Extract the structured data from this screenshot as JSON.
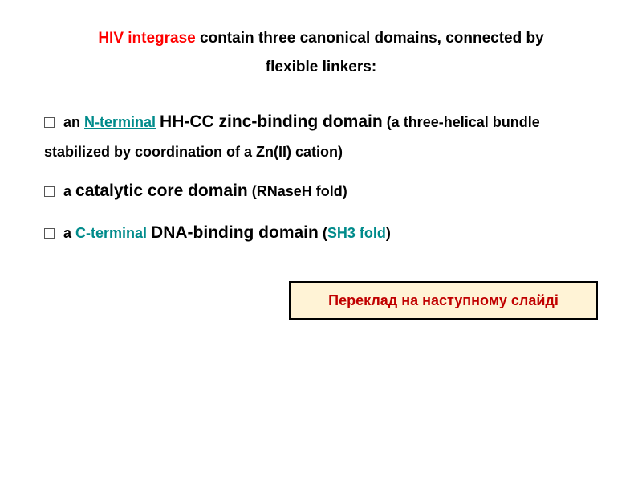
{
  "title": {
    "highlight": "HIV integrase",
    "rest_line1": " contain three canonical domains, connected by",
    "line2": "flexible linkers:"
  },
  "bullets": {
    "item1": {
      "prefix": " an ",
      "link": "N-terminal",
      "mid": " ",
      "term": "HH-CC zinc-binding domain",
      "suffix": " (a three-helical bundle stabilized by coordination of a Zn(II) cation)"
    },
    "item2": {
      "prefix": " a ",
      "term": "catalytic core domain",
      "suffix": " (RNaseH fold)"
    },
    "item3": {
      "prefix": " a ",
      "link1": "C-terminal",
      "mid1": " ",
      "term": "DNA-binding domain",
      "paren_open": " (",
      "link2": "SH3 fold",
      "paren_close": ")"
    }
  },
  "callout": {
    "text": "Переклад на наступному слайді"
  },
  "colors": {
    "red": "#ff0000",
    "teal": "#008b8b",
    "callout_bg": "#fff3d6",
    "callout_text": "#c00000",
    "black": "#000000"
  }
}
